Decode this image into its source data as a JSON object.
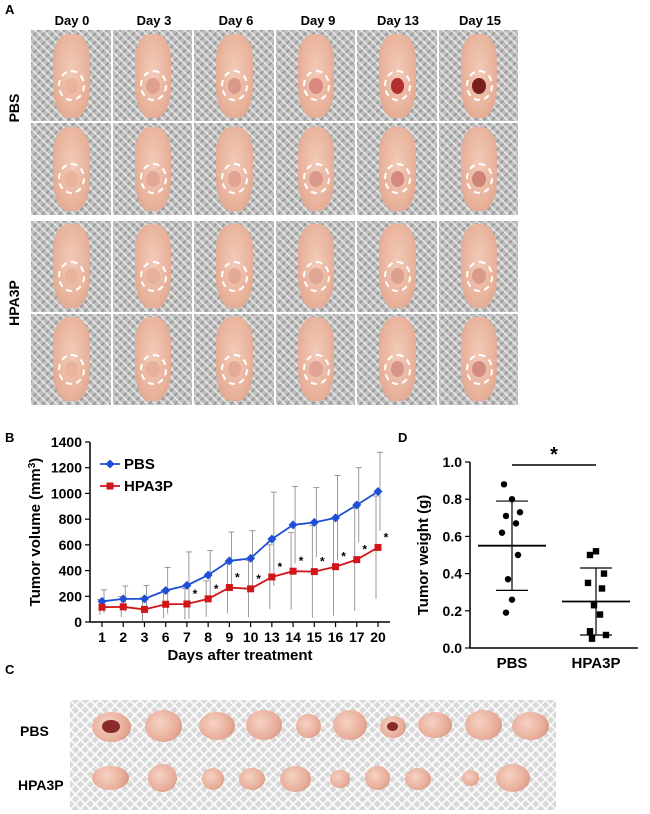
{
  "panels": {
    "a": "A",
    "b": "B",
    "c": "C",
    "d": "D"
  },
  "panel_a": {
    "days": [
      "Day 0",
      "Day 3",
      "Day 6",
      "Day 9",
      "Day 13",
      "Day 15"
    ],
    "groups": [
      "PBS",
      "HPA3P"
    ]
  },
  "panel_c": {
    "groups": [
      "PBS",
      "HPA3P"
    ]
  },
  "colors": {
    "pbs": "#1f4fd6",
    "hpa3p": "#d0161b",
    "axis": "#000000",
    "error": "#808080"
  },
  "chart_data": [
    {
      "type": "line",
      "id": "B",
      "x_categories": [
        "1",
        "2",
        "3",
        "6",
        "7",
        "8",
        "9",
        "10",
        "13",
        "14",
        "15",
        "16",
        "17",
        "20"
      ],
      "series": [
        {
          "name": "PBS",
          "marker": "diamond",
          "values": [
            160,
            180,
            180,
            245,
            285,
            365,
            475,
            495,
            645,
            755,
            775,
            810,
            910,
            1015
          ],
          "error": [
            90,
            100,
            105,
            180,
            260,
            190,
            225,
            215,
            365,
            300,
            270,
            330,
            290,
            305
          ]
        },
        {
          "name": "HPA3P",
          "marker": "square",
          "values": [
            115,
            118,
            98,
            138,
            140,
            180,
            268,
            258,
            350,
            395,
            392,
            430,
            485,
            580
          ],
          "error": [
            60,
            80,
            90,
            110,
            120,
            140,
            200,
            220,
            250,
            300,
            360,
            380,
            400,
            400
          ]
        }
      ],
      "significance": [
        "",
        "",
        "",
        "",
        "*",
        "*",
        "*",
        "*",
        "*",
        "*",
        "*",
        "*",
        "*",
        "*"
      ],
      "xlabel": "Days after treatment",
      "ylabel": "Tumor volume (mm",
      "ylabel_sup": "3",
      "ylabel_end": ")",
      "ylim": [
        0,
        1400
      ],
      "yticks": [
        "0",
        "200",
        "400",
        "600",
        "800",
        "1000",
        "1200",
        "1400"
      ],
      "legend": [
        "PBS",
        "HPA3P"
      ]
    },
    {
      "type": "scatter",
      "id": "D",
      "categories": [
        "PBS",
        "HPA3P"
      ],
      "series": [
        {
          "name": "PBS",
          "marker": "circle",
          "values": [
            0.88,
            0.8,
            0.73,
            0.71,
            0.67,
            0.62,
            0.5,
            0.37,
            0.26,
            0.19
          ],
          "mean": 0.55,
          "sd_upper": 0.79,
          "sd_lower": 0.31
        },
        {
          "name": "HPA3P",
          "marker": "square",
          "values": [
            0.52,
            0.5,
            0.4,
            0.35,
            0.32,
            0.23,
            0.18,
            0.09,
            0.07,
            0.05
          ],
          "mean": 0.25,
          "sd_upper": 0.43,
          "sd_lower": 0.07
        }
      ],
      "significance": "*",
      "ylabel": "Tumor weight (g)",
      "ylim": [
        0,
        1.0
      ],
      "yticks": [
        "0.0",
        "0.2",
        "0.4",
        "0.6",
        "0.8",
        "1.0"
      ]
    }
  ]
}
